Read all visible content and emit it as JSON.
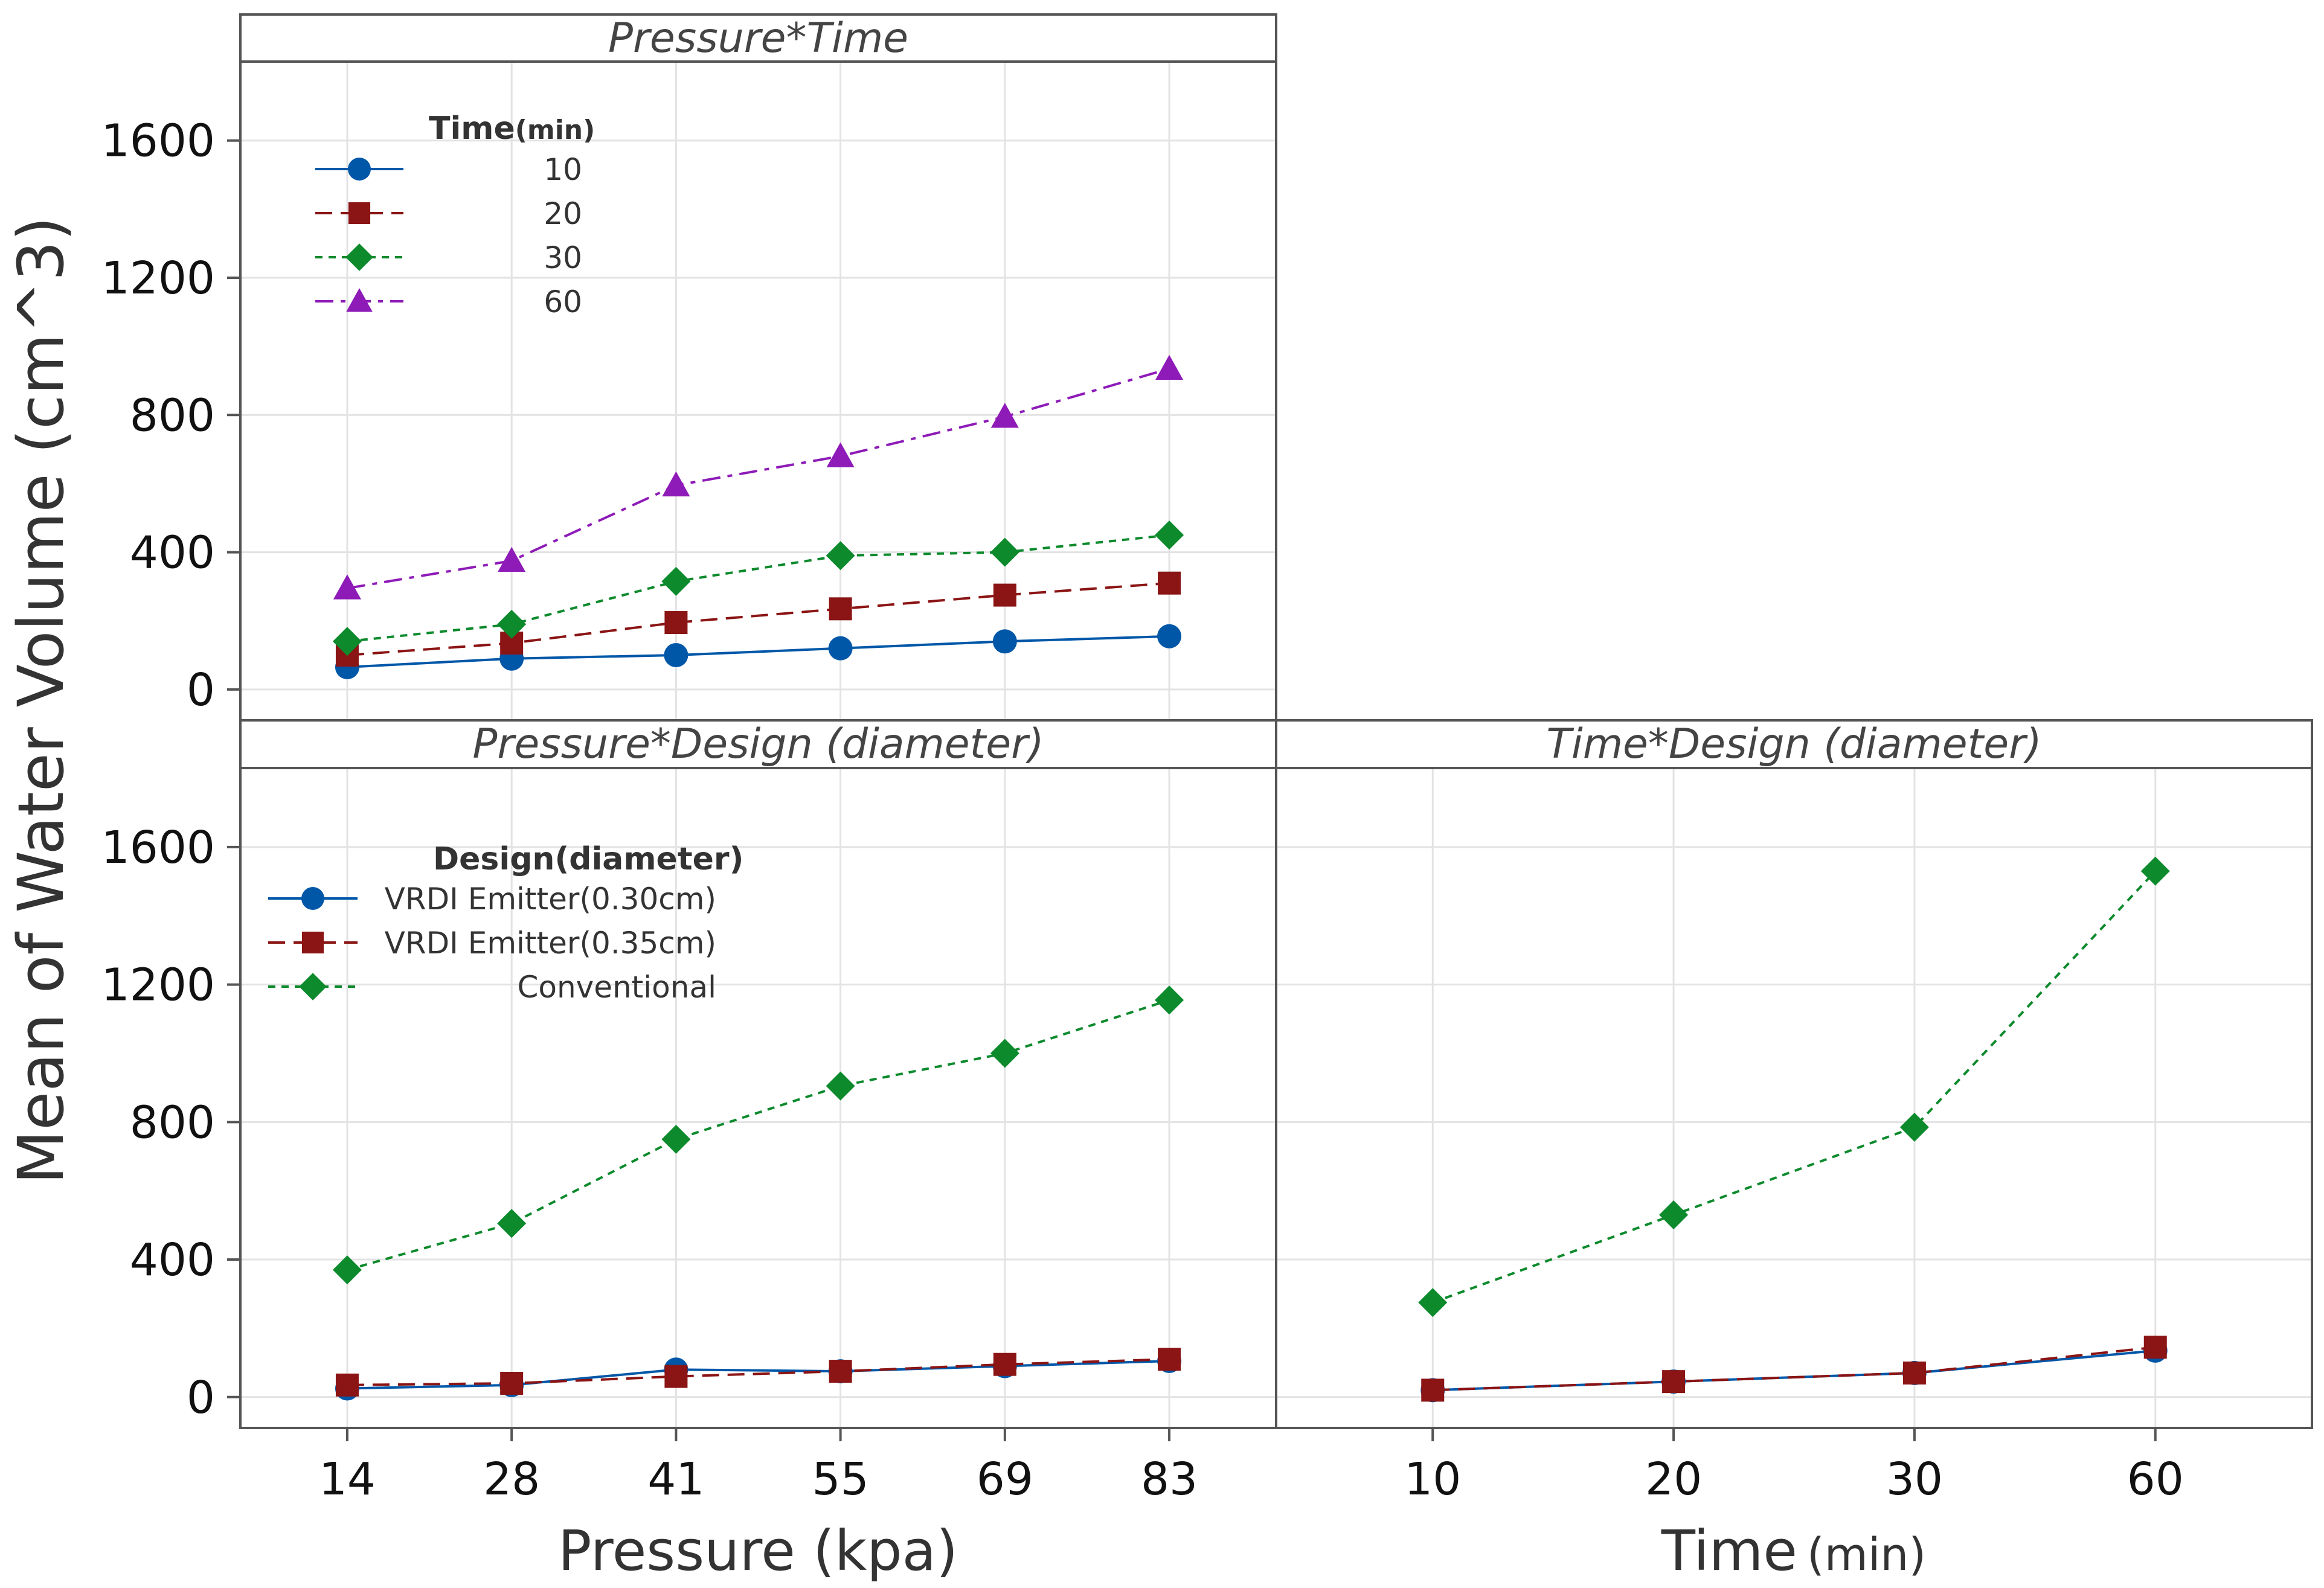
{
  "colors": {
    "blue": "#0057a8",
    "red": "#8b1414",
    "green": "#0c8a2c",
    "purple": "#8e1bb8",
    "grid": "#e3e3e3",
    "frame": "#555555"
  },
  "chart_data": {
    "type": "line",
    "ylabel": "Mean of Water Volume (cm^3)",
    "ylim": [
      -90,
      1830
    ],
    "yticks": [
      0,
      400,
      800,
      1200,
      1600
    ],
    "grid": true,
    "panels": [
      {
        "id": "pressure-time",
        "title": "Pressure*Time",
        "x": [
          "14",
          "28",
          "41",
          "55",
          "69",
          "83"
        ],
        "legend": {
          "title": "Time",
          "title_unit": "(min)",
          "placement": "top-left"
        },
        "series": [
          {
            "name": "10",
            "color": "#0057a8",
            "marker": "circle",
            "line": "solid",
            "values": [
              65,
              90,
              100,
              120,
              140,
              155
            ]
          },
          {
            "name": "20",
            "color": "#8b1414",
            "marker": "square",
            "line": "dashed",
            "values": [
              100,
              135,
              195,
              235,
              275,
              310
            ]
          },
          {
            "name": "30",
            "color": "#0c8a2c",
            "marker": "diamond",
            "line": "dotted",
            "values": [
              140,
              190,
              315,
              390,
              400,
              450
            ]
          },
          {
            "name": "60",
            "color": "#8e1bb8",
            "marker": "triangle",
            "line": "dashdot",
            "values": [
              295,
              375,
              595,
              680,
              795,
              935
            ]
          }
        ]
      },
      {
        "id": "pressure-design",
        "title": "Pressure*Design (diameter)",
        "x": [
          "14",
          "28",
          "41",
          "55",
          "69",
          "83"
        ],
        "xlabel": "Pressure (kpa)",
        "legend": {
          "title": "Design",
          "title_unit": "(diameter)",
          "placement": "top-left"
        },
        "series": [
          {
            "name": "VRDI Emitter(0.30cm)",
            "color": "#0057a8",
            "marker": "circle",
            "line": "solid",
            "values": [
              25,
              35,
              80,
              75,
              90,
              105
            ]
          },
          {
            "name": "VRDI Emitter(0.35cm)",
            "color": "#8b1414",
            "marker": "square",
            "line": "dashed",
            "values": [
              35,
              40,
              60,
              75,
              95,
              110
            ]
          },
          {
            "name": "Conventional",
            "color": "#0c8a2c",
            "marker": "diamond",
            "line": "dotted",
            "values": [
              370,
              505,
              750,
              905,
              1000,
              1155
            ]
          }
        ]
      },
      {
        "id": "time-design",
        "title": "Time*Design (diameter)",
        "x": [
          "10",
          "20",
          "30",
          "60"
        ],
        "xlabel": "Time",
        "xlabel_unit": "(min)",
        "series": [
          {
            "name": "VRDI Emitter(0.30cm)",
            "color": "#0057a8",
            "marker": "circle",
            "line": "solid",
            "values": [
              20,
              45,
              70,
              135
            ]
          },
          {
            "name": "VRDI Emitter(0.35cm)",
            "color": "#8b1414",
            "marker": "square",
            "line": "dashed",
            "values": [
              20,
              45,
              70,
              145
            ]
          },
          {
            "name": "Conventional",
            "color": "#0c8a2c",
            "marker": "diamond",
            "line": "dotted",
            "values": [
              275,
              530,
              785,
              1530
            ]
          }
        ]
      }
    ]
  }
}
